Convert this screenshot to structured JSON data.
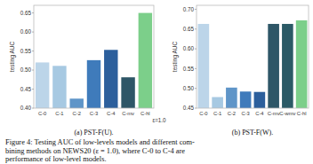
{
  "chart_data": [
    {
      "type": "bar",
      "title": "(a) PST-F(U).",
      "y_label": "testing AUC",
      "annotations": [
        "ε=1.0"
      ],
      "categories": [
        "C-0",
        "C-1",
        "C-2",
        "C-3",
        "C-4",
        "C-mv",
        "C-hl"
      ],
      "values": [
        0.52,
        0.511,
        0.425,
        0.526,
        0.553,
        0.481,
        0.65
      ],
      "colors": [
        "#bcd5e9",
        "#a7c9e2",
        "#5f95c8",
        "#3f7bbb",
        "#2c5f9c",
        "#2e5667",
        "#7ccf8a"
      ],
      "ylim": [
        0.4,
        0.67
      ],
      "yticks": [
        {
          "value": 0.4,
          "label": "0.40"
        },
        0.45,
        {
          "value": 0.5,
          "label": "0.50"
        },
        0.55,
        {
          "value": 0.6,
          "label": "0.60"
        },
        0.65
      ],
      "grid": false
    },
    {
      "type": "bar",
      "title": "(b) PST-F(W).",
      "y_label": "testing AUC",
      "categories": [
        "C-0",
        "C-1",
        "C-2",
        "C-3",
        "C-4",
        "C-mv",
        "C-wmv",
        "C-hl"
      ],
      "values": [
        0.663,
        0.478,
        0.502,
        0.492,
        0.491,
        0.663,
        0.663,
        0.672
      ],
      "colors": [
        "#bcd5e9",
        "#a7c9e2",
        "#5f95c8",
        "#3f7bbb",
        "#2c5f9c",
        "#2e5667",
        "#2b5a66",
        "#7ccf8a"
      ],
      "ylim": [
        0.45,
        0.71
      ],
      "yticks": [
        0.45,
        {
          "value": 0.5,
          "label": "0.50"
        },
        0.55,
        {
          "value": 0.6,
          "label": "0.60"
        },
        0.65,
        {
          "value": 0.7,
          "label": "0.70"
        }
      ],
      "grid": false
    }
  ],
  "caption": [
    "Figure 4: Testing AUC of low-levels models and different com-",
    "bining methods on NEWS20 (ε = 1.0), where C-0 to C-4 are",
    "performance of low-level models."
  ]
}
